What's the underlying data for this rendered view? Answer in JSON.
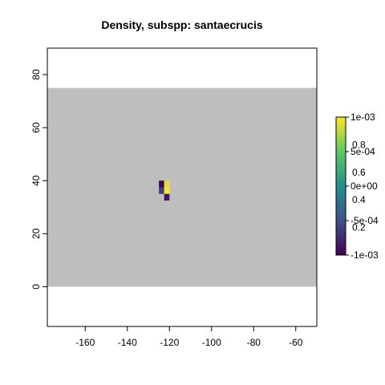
{
  "chart_data": {
    "type": "heatmap",
    "title": "Density, subspp: santaecrucis",
    "xlabel": "",
    "ylabel": "",
    "xlim": [
      -178,
      -50
    ],
    "ylim": [
      -15,
      90
    ],
    "xticks": [
      -160,
      -140,
      -120,
      -100,
      -80,
      -60
    ],
    "yticks": [
      0,
      20,
      40,
      60,
      80
    ],
    "raster_extent": {
      "xmin": -178,
      "xmax": -50,
      "ymin": 0,
      "ymax": 75
    },
    "na_color": "#bebebe",
    "cell_size": 2.5,
    "cells": [
      {
        "x": -123.75,
        "y": 38.75,
        "value": -0.001
      },
      {
        "x": -121.25,
        "y": 38.75,
        "value": 0.0009
      },
      {
        "x": -123.75,
        "y": 36.25,
        "value": -0.0006
      },
      {
        "x": -121.25,
        "y": 36.25,
        "value": 0.001
      },
      {
        "x": -121.25,
        "y": 33.75,
        "value": -0.0009
      }
    ],
    "colorbar_a": {
      "ticks": [
        "1e-03",
        "5e-04",
        "0e+00",
        "-5e-04",
        "-1e-03"
      ],
      "range": [
        -0.001,
        0.001
      ]
    },
    "colorbar_b": {
      "ticks": [
        "0.8",
        "0.6",
        "0.4",
        "0.2"
      ],
      "range": [
        0,
        1
      ]
    },
    "colors": [
      "#440154",
      "#3b528b",
      "#21908c",
      "#5dc863",
      "#fde725"
    ]
  }
}
